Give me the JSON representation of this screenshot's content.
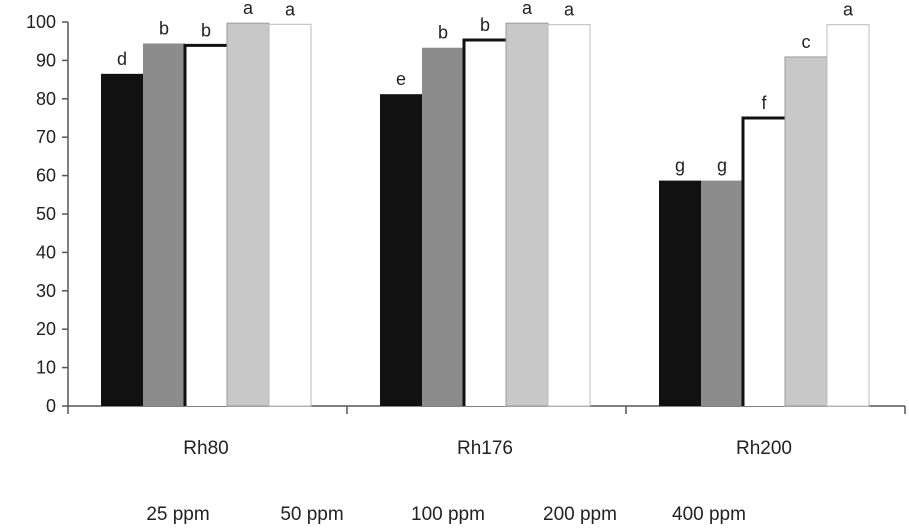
{
  "chart_data": {
    "type": "bar",
    "categories": [
      "Rh80",
      "Rh176",
      "Rh200"
    ],
    "series": [
      {
        "name": "25 ppm",
        "values": [
          86.5,
          81.2,
          58.7
        ],
        "letters": [
          "d",
          "e",
          "g"
        ]
      },
      {
        "name": "50 ppm",
        "values": [
          94.4,
          93.3,
          58.7
        ],
        "letters": [
          "b",
          "b",
          "g"
        ]
      },
      {
        "name": "100 ppm",
        "values": [
          93.9,
          95.3,
          75.0
        ],
        "letters": [
          "b",
          "b",
          "f"
        ]
      },
      {
        "name": "200 ppm",
        "values": [
          99.7,
          99.7,
          90.9
        ],
        "letters": [
          "a",
          "a",
          "c"
        ]
      },
      {
        "name": "400 ppm",
        "values": [
          99.4,
          99.3,
          99.3
        ],
        "letters": [
          "a",
          "a",
          "a"
        ]
      }
    ],
    "ylim": [
      0,
      100
    ],
    "yticks": [
      0,
      10,
      20,
      30,
      40,
      50,
      60,
      70,
      80,
      90,
      100
    ],
    "grid": false,
    "legend_position": "bottom",
    "series_styles": [
      {
        "fill": "#111111",
        "stroke": "none",
        "outline": false
      },
      {
        "fill": "#8c8c8c",
        "stroke": "none",
        "outline": false
      },
      {
        "fill": "#ffffff",
        "stroke": "#111111",
        "outline": true
      },
      {
        "fill": "#c8c8c8",
        "stroke": "#9a9a9a",
        "outline": false
      },
      {
        "fill": "#ffffff",
        "stroke": "#bbbbbb",
        "outline": false
      }
    ]
  }
}
